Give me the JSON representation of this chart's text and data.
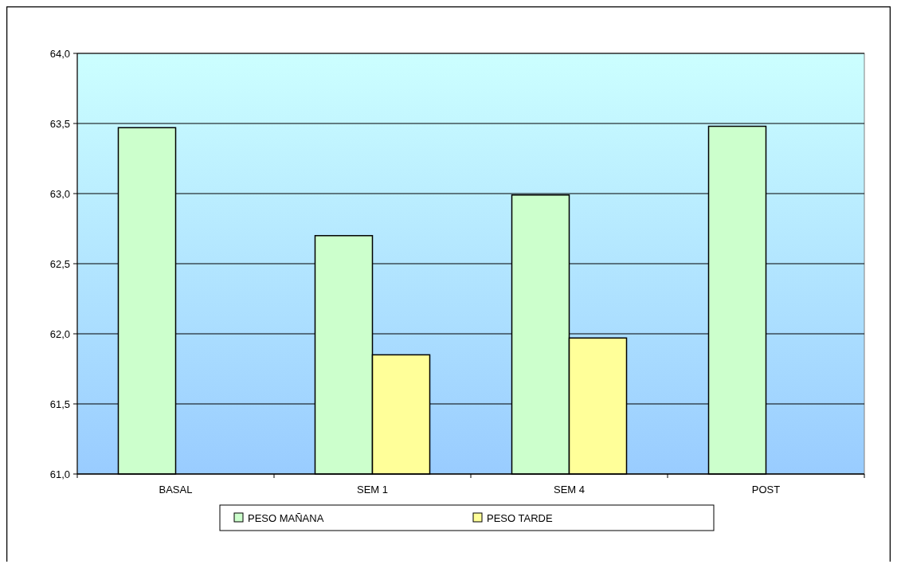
{
  "chart_data": {
    "type": "bar",
    "categories": [
      "BASAL",
      "SEM 1",
      "SEM 4",
      "POST"
    ],
    "series": [
      {
        "name": "PESO MAÑANA",
        "color": "#ccffcc",
        "values": [
          63.47,
          62.7,
          62.99,
          63.48
        ]
      },
      {
        "name": "PESO TARDE",
        "color": "#ffff99",
        "values": [
          null,
          61.85,
          61.97,
          null
        ]
      }
    ],
    "ylim": [
      61,
      64
    ],
    "yticks": [
      {
        "value": 61,
        "label": "61,0"
      },
      {
        "value": 61.5,
        "label": "61,5"
      },
      {
        "value": 62,
        "label": "62,0"
      },
      {
        "value": 62.5,
        "label": "62,5"
      },
      {
        "value": 63,
        "label": "63,0"
      },
      {
        "value": 63.5,
        "label": "63,5"
      },
      {
        "value": 64,
        "label": "64,0"
      }
    ],
    "grid": "y",
    "legend": "bottom"
  }
}
